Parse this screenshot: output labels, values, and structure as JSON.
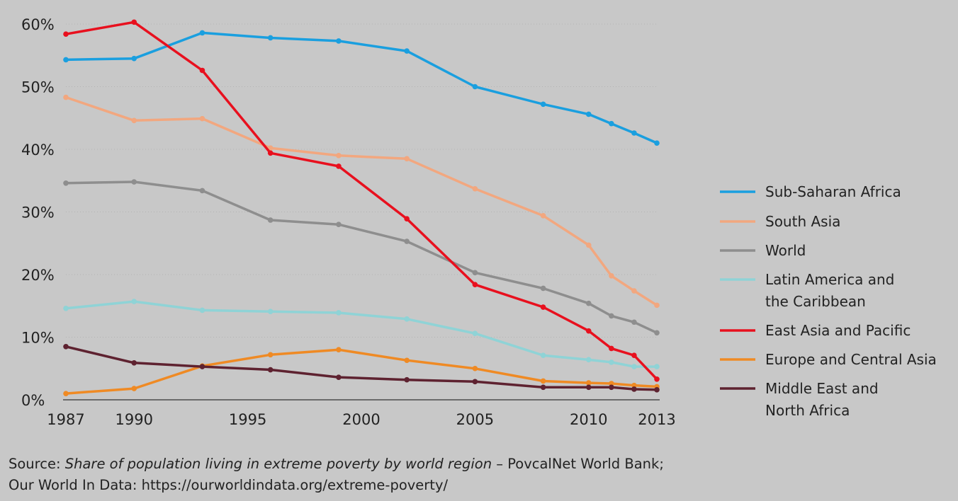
{
  "chart_data": {
    "type": "line",
    "x_ticks": [
      1987,
      1990,
      1995,
      2000,
      2005,
      2010,
      2013
    ],
    "y_ticks": [
      0,
      10,
      20,
      30,
      40,
      50,
      60
    ],
    "y_tick_labels": [
      "0%",
      "10%",
      "20%",
      "30%",
      "40%",
      "50%",
      "60%"
    ],
    "xlim": [
      1987,
      2013
    ],
    "ylim": [
      0,
      60
    ],
    "grid": "y-dotted",
    "legend_position": "right",
    "series": [
      {
        "name": "Sub-Saharan Africa",
        "color": "#1a9fdf",
        "x": [
          1987,
          1990,
          1993,
          1996,
          1999,
          2002,
          2005,
          2008,
          2010,
          2011,
          2012,
          2013
        ],
        "y": [
          54.3,
          54.5,
          58.6,
          57.8,
          57.3,
          55.7,
          50.0,
          47.2,
          45.6,
          44.1,
          42.6,
          41.0
        ]
      },
      {
        "name": "South Asia",
        "color": "#f2a77f",
        "x": [
          1987,
          1990,
          1993,
          1996,
          1999,
          2002,
          2005,
          2008,
          2010,
          2011,
          2012,
          2013
        ],
        "y": [
          48.3,
          44.6,
          44.9,
          40.2,
          39.0,
          38.5,
          33.7,
          29.4,
          24.7,
          19.8,
          17.4,
          15.1
        ]
      },
      {
        "name": "World",
        "color": "#8e8e8e",
        "x": [
          1987,
          1990,
          1993,
          1996,
          1999,
          2002,
          2005,
          2008,
          2010,
          2011,
          2012,
          2013
        ],
        "y": [
          34.6,
          34.8,
          33.4,
          28.7,
          28.0,
          25.3,
          20.3,
          17.8,
          15.4,
          13.4,
          12.4,
          10.7
        ]
      },
      {
        "name": "Latin America and the Caribbean",
        "name_lines": [
          "Latin America and",
          "the Caribbean"
        ],
        "color": "#8fd3d6",
        "x": [
          1987,
          1990,
          1993,
          1996,
          1999,
          2002,
          2005,
          2008,
          2010,
          2011,
          2012,
          2013
        ],
        "y": [
          14.6,
          15.7,
          14.3,
          14.1,
          13.9,
          12.9,
          10.6,
          7.1,
          6.4,
          6.0,
          5.3,
          5.3
        ]
      },
      {
        "name": "East Asia and Pacific",
        "color": "#e8101e",
        "x": [
          1987,
          1990,
          1993,
          1996,
          1999,
          2002,
          2005,
          2008,
          2010,
          2011,
          2012,
          2013
        ],
        "y": [
          58.4,
          60.3,
          52.6,
          39.4,
          37.3,
          28.9,
          18.4,
          14.8,
          11.0,
          8.2,
          7.1,
          3.3
        ]
      },
      {
        "name": "Europe and Central Asia",
        "color": "#ef8a24",
        "x": [
          1987,
          1990,
          1993,
          1996,
          1999,
          2002,
          2005,
          2008,
          2010,
          2011,
          2012,
          2013
        ],
        "y": [
          1.0,
          1.8,
          5.4,
          7.2,
          8.0,
          6.3,
          5.0,
          3.0,
          2.7,
          2.6,
          2.3,
          2.1
        ]
      },
      {
        "name": "Middle East and North Africa",
        "name_lines": [
          "Middle East and",
          "North Africa"
        ],
        "color": "#5e2230",
        "x": [
          1987,
          1990,
          1993,
          1996,
          1999,
          2002,
          2005,
          2008,
          2010,
          2011,
          2012,
          2013
        ],
        "y": [
          8.5,
          5.9,
          5.3,
          4.8,
          3.6,
          3.2,
          2.9,
          2.0,
          2.0,
          2.0,
          1.7,
          1.6
        ]
      }
    ]
  },
  "source": {
    "prefix": "Source: ",
    "title": "Share of population living in extreme poverty by world region",
    "suffix": " – PovcalNet World Bank;",
    "line2": "Our World In Data: https://ourworldindata.org/extreme-poverty/"
  }
}
